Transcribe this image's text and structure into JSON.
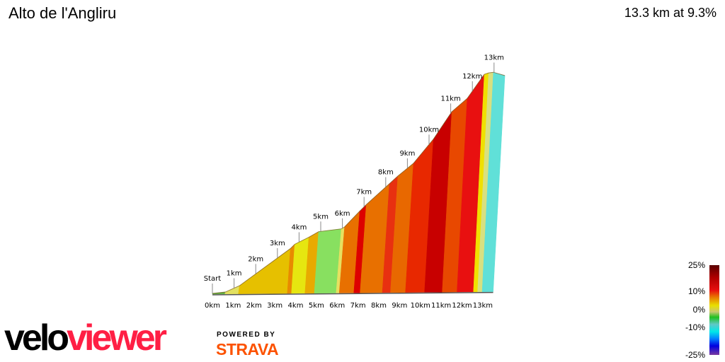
{
  "header": {
    "title": "Alto de l'Angliru",
    "summary": "13.3 km at 9.3%"
  },
  "chart_data": {
    "type": "area",
    "title": "Alto de l'Angliru",
    "start_label": "Start",
    "distance_ticks": [
      "0km",
      "1km",
      "2km",
      "3km",
      "4km",
      "5km",
      "6km",
      "7km",
      "8km",
      "9km",
      "10km",
      "11km",
      "12km",
      "13km"
    ],
    "profile_markers": [
      "1km",
      "2km",
      "3km",
      "4km",
      "5km",
      "6km",
      "7km",
      "8km",
      "9km",
      "10km",
      "11km",
      "12km",
      "13km"
    ],
    "segments": [
      {
        "start_km": 0.0,
        "end_km": 0.6,
        "gradient_pct": 1.3,
        "color": "#5fb040"
      },
      {
        "start_km": 0.6,
        "end_km": 1.25,
        "gradient_pct": 5.4,
        "color": "#e2e060"
      },
      {
        "start_km": 1.25,
        "end_km": 3.6,
        "gradient_pct": 8.8,
        "color": "#e6c000"
      },
      {
        "start_km": 3.6,
        "end_km": 3.8,
        "gradient_pct": 12,
        "color": "#e88a00"
      },
      {
        "start_km": 3.8,
        "end_km": 4.45,
        "gradient_pct": 6,
        "color": "#e6e610"
      },
      {
        "start_km": 4.45,
        "end_km": 4.9,
        "gradient_pct": 6.9,
        "color": "#e8aa00"
      },
      {
        "start_km": 4.9,
        "end_km": 5.95,
        "gradient_pct": 1.5,
        "color": "#88e060"
      },
      {
        "start_km": 5.95,
        "end_km": 6.1,
        "gradient_pct": 7,
        "color": "#e6e060"
      },
      {
        "start_km": 6.1,
        "end_km": 6.8,
        "gradient_pct": 12.6,
        "color": "#e87000"
      },
      {
        "start_km": 6.8,
        "end_km": 7.1,
        "gradient_pct": 12,
        "color": "#dd0000"
      },
      {
        "start_km": 7.1,
        "end_km": 8.17,
        "gradient_pct": 10.9,
        "color": "#e87000"
      },
      {
        "start_km": 8.17,
        "end_km": 8.56,
        "gradient_pct": 11,
        "color": "#e83010"
      },
      {
        "start_km": 8.56,
        "end_km": 9.28,
        "gradient_pct": 9.8,
        "color": "#e86800"
      },
      {
        "start_km": 9.28,
        "end_km": 10.2,
        "gradient_pct": 14.6,
        "color": "#e82800"
      },
      {
        "start_km": 10.2,
        "end_km": 11.05,
        "gradient_pct": 18,
        "color": "#c80000"
      },
      {
        "start_km": 11.05,
        "end_km": 11.76,
        "gradient_pct": 10.4,
        "color": "#e84800"
      },
      {
        "start_km": 11.76,
        "end_km": 12.55,
        "gradient_pct": 17,
        "color": "#e81010"
      },
      {
        "start_km": 12.55,
        "end_km": 12.75,
        "gradient_pct": 4,
        "color": "#f0e000"
      },
      {
        "start_km": 12.75,
        "end_km": 12.97,
        "gradient_pct": 1.7,
        "color": "#d8e080"
      },
      {
        "start_km": 12.97,
        "end_km": 13.5,
        "gradient_pct": -3.5,
        "color": "#60e0d8"
      }
    ],
    "legend": {
      "labels": [
        "25%",
        "10%",
        "0%",
        "-10%",
        "-25%"
      ],
      "range": [
        -25,
        25
      ]
    }
  },
  "branding": {
    "logo_a": "velo",
    "logo_b": "viewer",
    "powered_by": "POWERED BY",
    "strava": "STRAVA",
    "strava_color": "#fc5200",
    "logo_color": "#ff1f44"
  }
}
